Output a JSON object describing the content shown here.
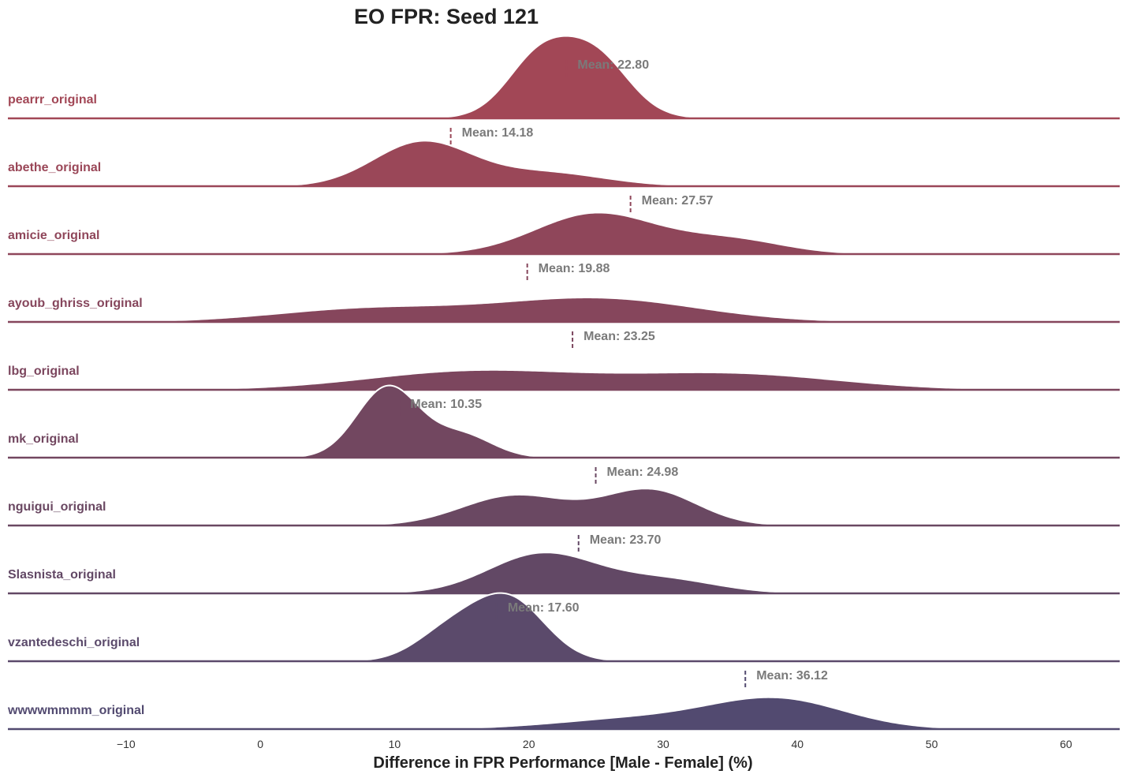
{
  "chart_data": {
    "type": "ridgeline",
    "title": "EO FPR: Seed 121",
    "xlabel": "Difference in FPR Performance [Male - Female] (%)",
    "xlim": [
      -18.8,
      64.0
    ],
    "xticks": [
      -10,
      0,
      10,
      20,
      30,
      40,
      50,
      60
    ],
    "xtick_labels": [
      "−10",
      "0",
      "10",
      "20",
      "30",
      "40",
      "50",
      "60"
    ],
    "mean_prefix": "Mean: ",
    "series": [
      {
        "name": "pearrr_original",
        "mean": 22.8,
        "mean_label": "Mean: 22.80",
        "color": "#a24756",
        "peak": 1.45,
        "components": [
          [
            23.0,
            3.2,
            1.0
          ],
          [
            20.0,
            2.0,
            0.25
          ],
          [
            26.0,
            2.0,
            0.2
          ]
        ]
      },
      {
        "name": "abethe_original",
        "mean": 14.18,
        "mean_label": "Mean: 14.18",
        "color": "#9a4758",
        "peak": 0.8,
        "components": [
          [
            12.0,
            3.6,
            1.0
          ],
          [
            21.0,
            4.5,
            0.32
          ]
        ]
      },
      {
        "name": "amicie_original",
        "mean": 27.57,
        "mean_label": "Mean: 27.57",
        "color": "#8f465a",
        "peak": 0.73,
        "components": [
          [
            25.0,
            4.5,
            1.0
          ],
          [
            35.0,
            4.0,
            0.35
          ]
        ]
      },
      {
        "name": "ayoub_ghriss_original",
        "mean": 19.88,
        "mean_label": "Mean: 19.88",
        "color": "#86465c",
        "peak": 0.43,
        "components": [
          [
            25.0,
            7.5,
            1.0
          ],
          [
            8.0,
            7.0,
            0.55
          ]
        ]
      },
      {
        "name": "lbg_original",
        "mean": 23.25,
        "mean_label": "Mean: 23.25",
        "color": "#7c465e",
        "peak": 0.35,
        "components": [
          [
            16.0,
            8.0,
            1.0
          ],
          [
            35.0,
            8.0,
            0.85
          ]
        ]
      },
      {
        "name": "mk_original",
        "mean": 10.35,
        "mean_label": "Mean: 10.35",
        "color": "#724760",
        "peak": 1.27,
        "components": [
          [
            9.5,
            2.3,
            1.0
          ],
          [
            15.0,
            2.3,
            0.32
          ]
        ]
      },
      {
        "name": "nguigui_original",
        "mean": 24.98,
        "mean_label": "Mean: 24.98",
        "color": "#6a4862",
        "peak": 0.65,
        "components": [
          [
            19.0,
            4.0,
            0.85
          ],
          [
            29.0,
            3.5,
            1.0
          ]
        ]
      },
      {
        "name": "Slasnista_original",
        "mean": 23.7,
        "mean_label": "Mean: 23.70",
        "color": "#624865",
        "peak": 0.72,
        "components": [
          [
            21.0,
            4.0,
            1.0
          ],
          [
            30.0,
            4.0,
            0.35
          ]
        ]
      },
      {
        "name": "vzantedeschi_original",
        "mean": 17.6,
        "mean_label": "Mean: 17.60",
        "color": "#5b4a6b",
        "peak": 1.2,
        "components": [
          [
            18.5,
            2.7,
            1.0
          ],
          [
            14.0,
            2.5,
            0.45
          ]
        ]
      },
      {
        "name": "wwwwmmmm_original",
        "mean": 36.12,
        "mean_label": "Mean: 36.12",
        "color": "#524a70",
        "peak": 0.56,
        "components": [
          [
            38.5,
            5.0,
            1.0
          ],
          [
            28.0,
            6.0,
            0.35
          ]
        ]
      }
    ]
  }
}
